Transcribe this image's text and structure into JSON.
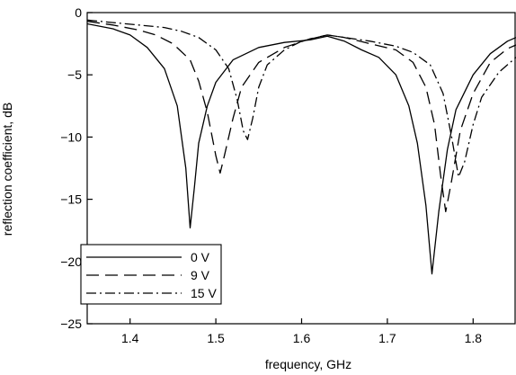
{
  "chart_data": {
    "type": "line",
    "title": "",
    "xlabel": "frequency, GHz",
    "ylabel": "reflection coefficient, dB",
    "xlim": [
      1.35,
      1.85
    ],
    "ylim": [
      -25,
      0
    ],
    "xticks": [
      1.4,
      1.5,
      1.6,
      1.7,
      1.8
    ],
    "xtick_labels": [
      "1.4",
      "1.5",
      "1.6",
      "1.7",
      "1.8"
    ],
    "yticks": [
      0,
      -5,
      -10,
      -15,
      -20,
      -25
    ],
    "ytick_labels": [
      "0",
      "−5",
      "−10",
      "−15",
      "−20",
      "−25"
    ],
    "grid": false,
    "legend_position": "bottom-left",
    "series": [
      {
        "name": "0 V",
        "style": "solid",
        "color": "#000000",
        "points": [
          [
            1.35,
            -0.9
          ],
          [
            1.38,
            -1.3
          ],
          [
            1.4,
            -1.8
          ],
          [
            1.42,
            -2.8
          ],
          [
            1.44,
            -4.5
          ],
          [
            1.455,
            -7.5
          ],
          [
            1.465,
            -12.5
          ],
          [
            1.47,
            -17.3
          ],
          [
            1.475,
            -14.0
          ],
          [
            1.48,
            -10.5
          ],
          [
            1.49,
            -7.5
          ],
          [
            1.5,
            -5.6
          ],
          [
            1.52,
            -3.8
          ],
          [
            1.55,
            -2.8
          ],
          [
            1.58,
            -2.4
          ],
          [
            1.61,
            -2.2
          ],
          [
            1.63,
            -1.9
          ],
          [
            1.65,
            -2.3
          ],
          [
            1.67,
            -3.0
          ],
          [
            1.69,
            -3.6
          ],
          [
            1.71,
            -5.0
          ],
          [
            1.725,
            -7.5
          ],
          [
            1.735,
            -10.5
          ],
          [
            1.745,
            -15.5
          ],
          [
            1.752,
            -21.0
          ],
          [
            1.76,
            -16.0
          ],
          [
            1.77,
            -11.0
          ],
          [
            1.78,
            -7.8
          ],
          [
            1.8,
            -5.0
          ],
          [
            1.82,
            -3.3
          ],
          [
            1.84,
            -2.3
          ],
          [
            1.85,
            -2.0
          ]
        ]
      },
      {
        "name": "9 V",
        "style": "dashed",
        "color": "#000000",
        "points": [
          [
            1.35,
            -0.7
          ],
          [
            1.38,
            -1.0
          ],
          [
            1.41,
            -1.4
          ],
          [
            1.43,
            -1.8
          ],
          [
            1.45,
            -2.5
          ],
          [
            1.47,
            -3.8
          ],
          [
            1.48,
            -5.5
          ],
          [
            1.49,
            -8.0
          ],
          [
            1.5,
            -11.5
          ],
          [
            1.505,
            -12.9
          ],
          [
            1.51,
            -11.5
          ],
          [
            1.52,
            -8.5
          ],
          [
            1.53,
            -6.0
          ],
          [
            1.55,
            -4.0
          ],
          [
            1.58,
            -2.8
          ],
          [
            1.61,
            -2.1
          ],
          [
            1.63,
            -1.8
          ],
          [
            1.65,
            -2.0
          ],
          [
            1.68,
            -2.5
          ],
          [
            1.71,
            -3.0
          ],
          [
            1.73,
            -4.0
          ],
          [
            1.745,
            -6.0
          ],
          [
            1.755,
            -9.0
          ],
          [
            1.762,
            -13.0
          ],
          [
            1.768,
            -16.0
          ],
          [
            1.775,
            -13.5
          ],
          [
            1.785,
            -9.5
          ],
          [
            1.8,
            -6.5
          ],
          [
            1.82,
            -4.0
          ],
          [
            1.84,
            -2.9
          ],
          [
            1.85,
            -2.6
          ]
        ]
      },
      {
        "name": "15 V",
        "style": "dashdot",
        "color": "#000000",
        "points": [
          [
            1.35,
            -0.6
          ],
          [
            1.38,
            -0.8
          ],
          [
            1.41,
            -1.0
          ],
          [
            1.44,
            -1.2
          ],
          [
            1.46,
            -1.5
          ],
          [
            1.48,
            -2.0
          ],
          [
            1.5,
            -3.0
          ],
          [
            1.515,
            -4.5
          ],
          [
            1.525,
            -7.0
          ],
          [
            1.532,
            -9.5
          ],
          [
            1.537,
            -10.2
          ],
          [
            1.543,
            -8.5
          ],
          [
            1.55,
            -6.0
          ],
          [
            1.56,
            -4.2
          ],
          [
            1.58,
            -3.0
          ],
          [
            1.6,
            -2.3
          ],
          [
            1.63,
            -1.8
          ],
          [
            1.65,
            -2.0
          ],
          [
            1.68,
            -2.3
          ],
          [
            1.71,
            -2.7
          ],
          [
            1.73,
            -3.2
          ],
          [
            1.75,
            -4.2
          ],
          [
            1.765,
            -6.5
          ],
          [
            1.775,
            -10.0
          ],
          [
            1.783,
            -13.2
          ],
          [
            1.79,
            -12.0
          ],
          [
            1.8,
            -9.0
          ],
          [
            1.81,
            -6.8
          ],
          [
            1.83,
            -4.8
          ],
          [
            1.85,
            -3.6
          ]
        ]
      }
    ]
  }
}
